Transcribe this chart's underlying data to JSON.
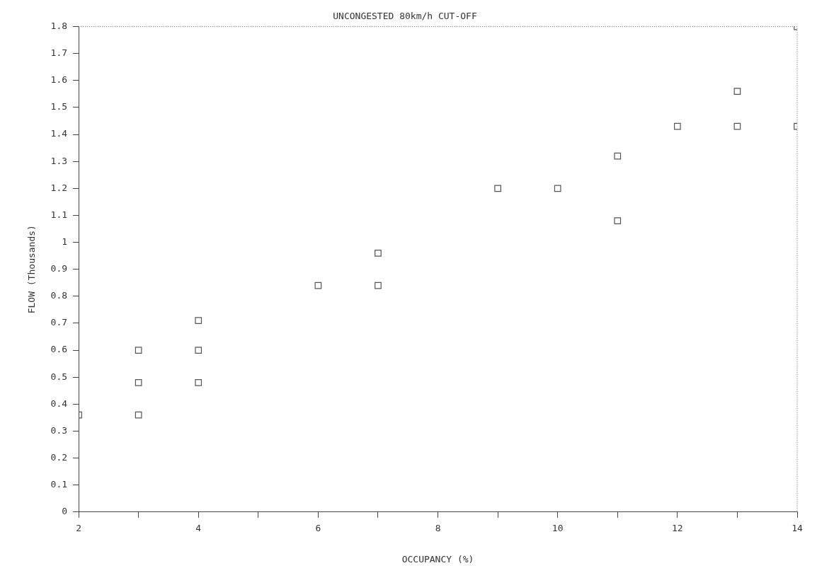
{
  "chart_data": {
    "type": "scatter",
    "title": "UNCONGESTED 80km/h CUT-OFF",
    "xlabel": "OCCUPANCY (%)",
    "ylabel": "FLOW (Thousands)",
    "x": [
      2,
      3,
      3,
      3,
      4,
      4,
      4,
      6,
      7,
      7,
      9,
      10,
      11,
      11,
      12,
      13,
      13,
      14,
      14
    ],
    "values": [
      0.36,
      0.36,
      0.48,
      0.6,
      0.48,
      0.6,
      0.71,
      0.84,
      0.84,
      0.96,
      1.2,
      1.2,
      1.32,
      1.08,
      1.43,
      1.43,
      1.56,
      1.43,
      1.8
    ],
    "color": "#555555",
    "marker": "square",
    "grid": false,
    "legend": false,
    "xlim": [
      2,
      14
    ],
    "xticks": [
      2,
      {
        "value": 3,
        "label": null
      },
      4,
      {
        "value": 5,
        "label": null
      },
      6,
      {
        "value": 7,
        "label": null
      },
      8,
      {
        "value": 9,
        "label": null
      },
      10,
      {
        "value": 11,
        "label": null
      },
      12,
      {
        "value": 13,
        "label": null
      },
      14
    ],
    "ylim": [
      0,
      1.8
    ],
    "yticks": [
      0,
      0.1,
      0.2,
      0.3,
      0.4,
      0.5,
      0.6,
      0.7,
      0.8,
      0.9,
      1,
      1.1,
      1.2,
      1.3,
      1.4,
      1.5,
      1.6,
      1.7,
      1.8
    ]
  }
}
